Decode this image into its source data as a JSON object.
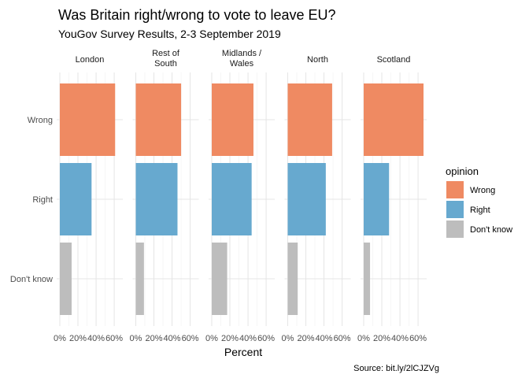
{
  "chart_data": {
    "type": "bar",
    "orientation": "horizontal",
    "faceted": true,
    "title": "Was Britain right/wrong to vote to leave EU?",
    "subtitle": "YouGov Survey Results, 2-3 September 2019",
    "caption": "Source: bit.ly/2lCJZVg",
    "xlabel": "Percent",
    "ylabel": "",
    "xlim": [
      0,
      0.66
    ],
    "x_ticks": [
      {
        "value": 0,
        "label": "0%"
      },
      {
        "value": 0.2,
        "label": "20%"
      },
      {
        "value": 0.4,
        "label": "40%"
      },
      {
        "value": 0.6,
        "label": "60%"
      }
    ],
    "categories": [
      "Wrong",
      "Right",
      "Don't know"
    ],
    "legend": {
      "title": "opinion",
      "placement": "right",
      "entries": [
        {
          "label": "Wrong",
          "color": "#ef8a62"
        },
        {
          "label": "Right",
          "color": "#67a9cf"
        },
        {
          "label": "Don't know",
          "color": "#bdbdbd"
        }
      ]
    },
    "grid": true,
    "facets": [
      {
        "label": [
          "London"
        ],
        "values": {
          "Wrong": 0.61,
          "Right": 0.35,
          "Don't know": 0.13
        }
      },
      {
        "label": [
          "Rest of",
          "South"
        ],
        "values": {
          "Wrong": 0.5,
          "Right": 0.46,
          "Don't know": 0.09
        }
      },
      {
        "label": [
          "Midlands /",
          "Wales"
        ],
        "values": {
          "Wrong": 0.46,
          "Right": 0.44,
          "Don't know": 0.17
        }
      },
      {
        "label": [
          "North"
        ],
        "values": {
          "Wrong": 0.49,
          "Right": 0.42,
          "Don't know": 0.11
        }
      },
      {
        "label": [
          "Scotland"
        ],
        "values": {
          "Wrong": 0.66,
          "Right": 0.28,
          "Don't know": 0.07
        }
      }
    ]
  }
}
